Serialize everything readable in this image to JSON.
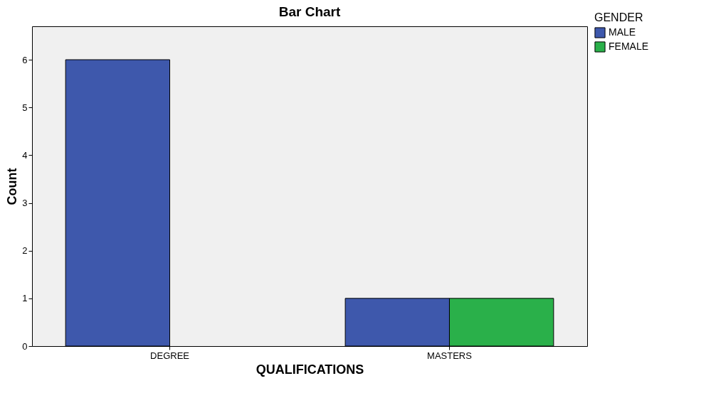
{
  "chart_data": {
    "type": "bar",
    "title": "Bar Chart",
    "xlabel": "QUALIFICATIONS",
    "ylabel": "Count",
    "legend_title": "GENDER",
    "categories": [
      "DEGREE",
      "MASTERS"
    ],
    "series": [
      {
        "name": "MALE",
        "color": "#3e58ac",
        "values": [
          6,
          1
        ]
      },
      {
        "name": "FEMALE",
        "color": "#2ab04a",
        "values": [
          null,
          1
        ]
      }
    ],
    "ylim": [
      0,
      6.7
    ],
    "yticks": [
      0,
      1,
      2,
      3,
      4,
      5,
      6
    ],
    "grid": false,
    "legend": "top right"
  }
}
